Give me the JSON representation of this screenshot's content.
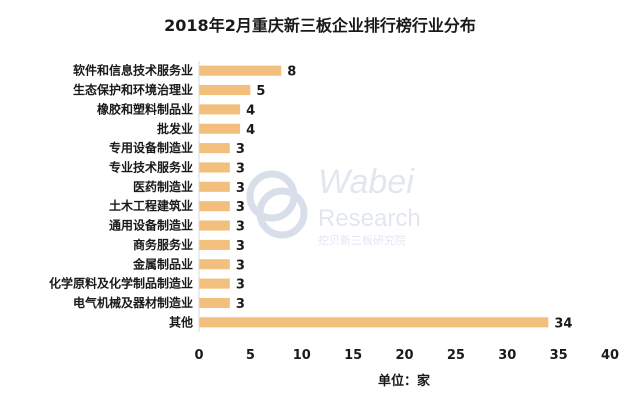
{
  "chart_data": {
    "type": "bar",
    "orientation": "horizontal",
    "title": "2018年2月重庆新三板企业排行榜行业分布",
    "xlabel": "单位：家",
    "ylabel": "",
    "categories": [
      "软件和信息技术服务业",
      "生态保护和环境治理业",
      "橡胶和塑料制品业",
      "批发业",
      "专用设备制造业",
      "专业技术服务业",
      "医药制造业",
      "土木工程建筑业",
      "通用设备制造业",
      "商务服务业",
      "金属制品业",
      "化学原料及化学制品制造业",
      "电气机械及器材制造业",
      "其他"
    ],
    "values": [
      8,
      5,
      4,
      4,
      3,
      3,
      3,
      3,
      3,
      3,
      3,
      3,
      3,
      34
    ],
    "xlim": [
      0,
      40
    ],
    "xticks": [
      0,
      5,
      10,
      15,
      20,
      25,
      30,
      35,
      40
    ],
    "grid": false,
    "legend": "none",
    "bar_color": "#f2c07c"
  },
  "watermark": {
    "brand": "Wabei",
    "sub": "Research",
    "cn": "挖贝新三板研究院"
  }
}
